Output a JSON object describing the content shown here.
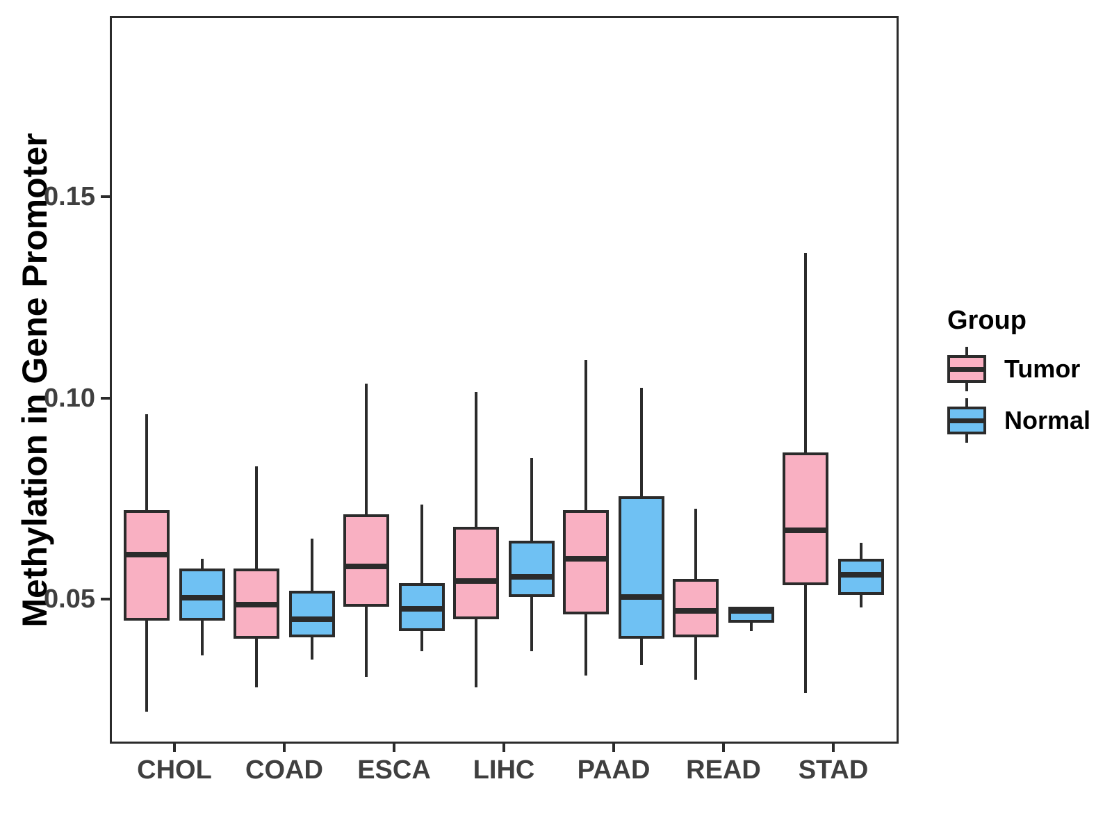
{
  "chart_data": {
    "type": "boxplot",
    "title": "",
    "xlabel": "",
    "ylabel": "Methylation in Gene Promoter",
    "categories": [
      "CHOL",
      "COAD",
      "ESCA",
      "LIHC",
      "PAAD",
      "READ",
      "STAD"
    ],
    "y_ticks": [
      "0.05",
      "0.10",
      "0.15"
    ],
    "y_tick_values": [
      0.05,
      0.1,
      0.15
    ],
    "ylim": [
      0.014,
      0.195
    ],
    "grid": "off",
    "legend_position": "right",
    "series": [
      {
        "name": "Tumor",
        "color": "#F9B0C2",
        "boxes": [
          {
            "category": "CHOL",
            "whisker_low": 0.022,
            "q1": 0.0445,
            "median": 0.061,
            "q3": 0.072,
            "whisker_high": 0.096
          },
          {
            "category": "COAD",
            "whisker_low": 0.028,
            "q1": 0.04,
            "median": 0.0485,
            "q3": 0.0575,
            "whisker_high": 0.083
          },
          {
            "category": "ESCA",
            "whisker_low": 0.0305,
            "q1": 0.048,
            "median": 0.058,
            "q3": 0.071,
            "whisker_high": 0.1035
          },
          {
            "category": "LIHC",
            "whisker_low": 0.028,
            "q1": 0.045,
            "median": 0.0545,
            "q3": 0.068,
            "whisker_high": 0.1015
          },
          {
            "category": "PAAD",
            "whisker_low": 0.031,
            "q1": 0.046,
            "median": 0.06,
            "q3": 0.072,
            "whisker_high": 0.1095
          },
          {
            "category": "READ",
            "whisker_low": 0.03,
            "q1": 0.0405,
            "median": 0.047,
            "q3": 0.055,
            "whisker_high": 0.0725
          },
          {
            "category": "STAD",
            "whisker_low": 0.0265,
            "q1": 0.0535,
            "median": 0.067,
            "q3": 0.0865,
            "whisker_high": 0.136
          }
        ]
      },
      {
        "name": "Normal",
        "color": "#6FC1F3",
        "boxes": [
          {
            "category": "CHOL",
            "whisker_low": 0.036,
            "q1": 0.0445,
            "median": 0.0503,
            "q3": 0.0575,
            "whisker_high": 0.06
          },
          {
            "category": "COAD",
            "whisker_low": 0.035,
            "q1": 0.0405,
            "median": 0.045,
            "q3": 0.052,
            "whisker_high": 0.065
          },
          {
            "category": "ESCA",
            "whisker_low": 0.037,
            "q1": 0.042,
            "median": 0.0475,
            "q3": 0.054,
            "whisker_high": 0.0735
          },
          {
            "category": "LIHC",
            "whisker_low": 0.037,
            "q1": 0.0505,
            "median": 0.0555,
            "q3": 0.0645,
            "whisker_high": 0.085
          },
          {
            "category": "PAAD",
            "whisker_low": 0.0335,
            "q1": 0.04,
            "median": 0.0505,
            "q3": 0.0755,
            "whisker_high": 0.1025
          },
          {
            "category": "READ",
            "whisker_low": 0.042,
            "q1": 0.044,
            "median": 0.047,
            "q3": 0.048,
            "whisker_high": 0.048
          },
          {
            "category": "STAD",
            "whisker_low": 0.048,
            "q1": 0.051,
            "median": 0.056,
            "q3": 0.06,
            "whisker_high": 0.064
          }
        ]
      }
    ]
  },
  "legend": {
    "title": "Group",
    "entries": [
      {
        "label": "Tumor",
        "color": "#F9B0C2"
      },
      {
        "label": "Normal",
        "color": "#6FC1F3"
      }
    ]
  },
  "colors": {
    "tumor": "#F9B0C2",
    "normal": "#6FC1F3",
    "line": "#2b2b2b",
    "axis_text": "#3f3f3f",
    "background": "#ffffff"
  }
}
